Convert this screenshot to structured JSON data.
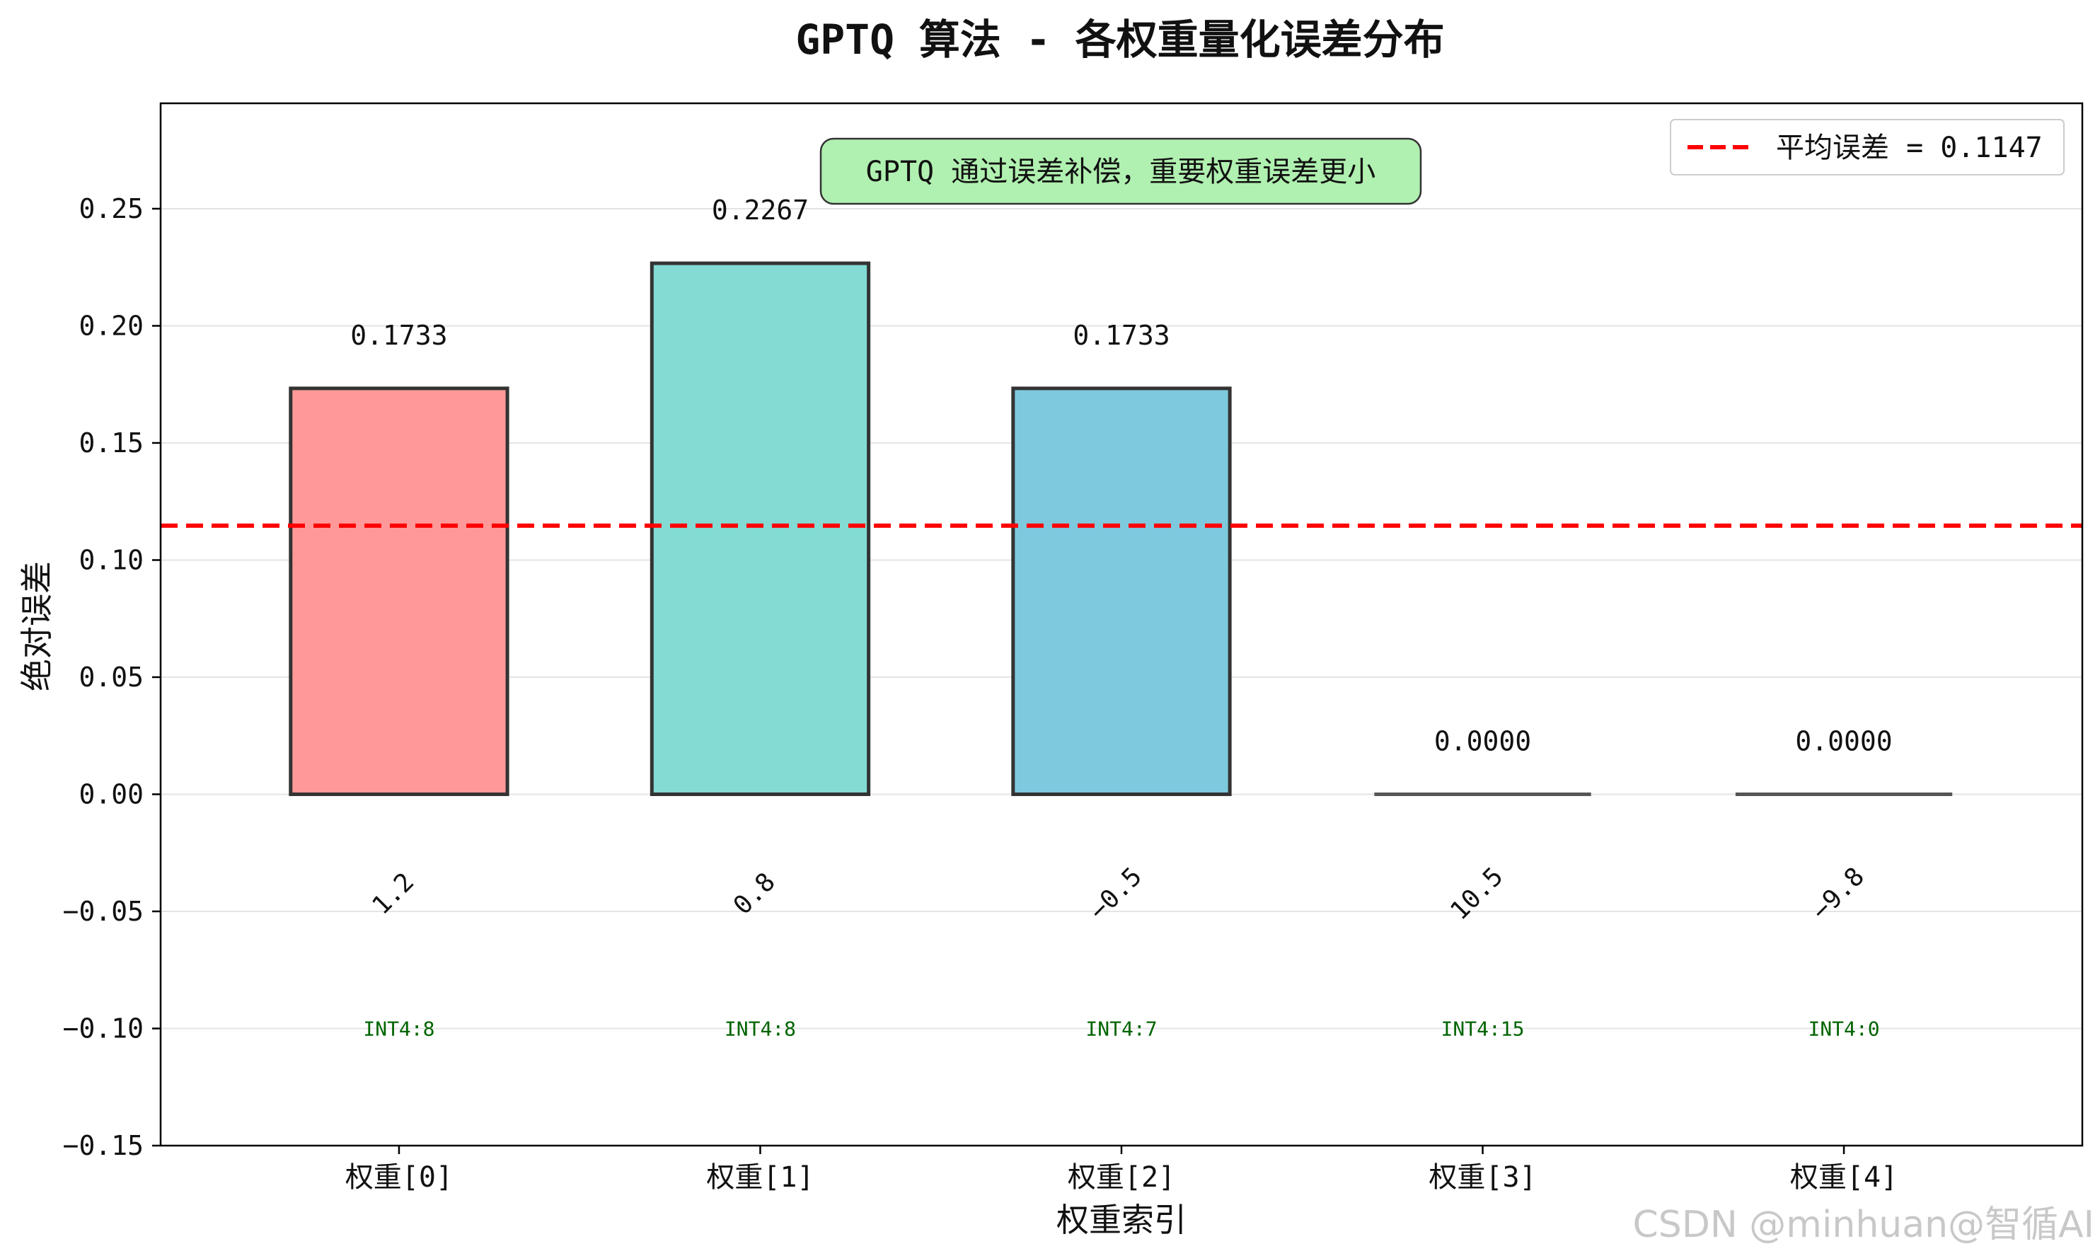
{
  "chart_data": {
    "type": "bar",
    "title": "GPTQ 算法 - 各权重量化误差分布",
    "xlabel": "权重索引",
    "ylabel": "绝对误差",
    "ylim": [
      -0.15,
      0.295
    ],
    "yticks": [
      -0.15,
      -0.1,
      -0.05,
      0.0,
      0.05,
      0.1,
      0.15,
      0.2,
      0.25
    ],
    "ytick_labels": [
      "−0.15",
      "−0.10",
      "−0.05",
      "0.00",
      "0.05",
      "0.10",
      "0.15",
      "0.20",
      "0.25"
    ],
    "categories": [
      "权重[0]",
      "权重[1]",
      "权重[2]",
      "权重[3]",
      "权重[4]"
    ],
    "values": [
      0.1733,
      0.2267,
      0.1733,
      0.0,
      0.0
    ],
    "value_labels": [
      "0.1733",
      "0.2267",
      "0.1733",
      "0.0000",
      "0.0000"
    ],
    "bar_colors": [
      "#ff9999",
      "#83dbd4",
      "#7ec9dd",
      "#9fd6c1",
      "#f4e4a4"
    ],
    "original_values": [
      "1.2",
      "0.8",
      "−0.5",
      "10.5",
      "−9.8"
    ],
    "int4_labels": [
      "INT4:8",
      "INT4:8",
      "INT4:7",
      "INT4:15",
      "INT4:0"
    ],
    "mean_line": {
      "value": 0.1147,
      "label": "平均误差 = 0.1147",
      "color": "#ff0000"
    },
    "annotation": "GPTQ 通过误差补偿，重要权重误差更小",
    "grid": true,
    "legend_placement": "top-right"
  },
  "watermark": "CSDN @minhuan@智循AI"
}
